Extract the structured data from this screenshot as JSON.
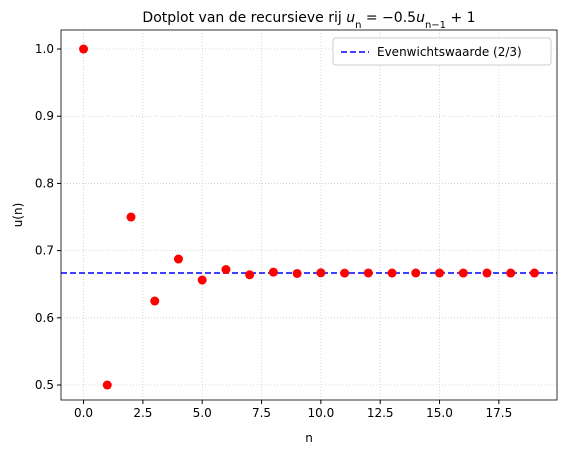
{
  "chart_data": {
    "type": "scatter",
    "title": [
      "Dotplot van de recursieve rij ",
      "u",
      "n",
      " = −0.5",
      "u",
      "n−1",
      " + 1"
    ],
    "x_label": "n",
    "y_label": "u(n)",
    "x": [
      0,
      1,
      2,
      3,
      4,
      5,
      6,
      7,
      8,
      9,
      10,
      11,
      12,
      13,
      14,
      15,
      16,
      17,
      18,
      19
    ],
    "values": [
      1,
      0.5,
      0.75,
      0.625,
      0.6875,
      0.65625,
      0.671875,
      0.6640625,
      0.66796875,
      0.666015625,
      0.6669921875,
      0.66650390625,
      0.666748046875,
      0.6666259765625,
      0.66668701171875,
      0.666656494140625,
      0.6666717529296875,
      0.6666641235351562,
      0.6666679382324219,
      0.666666030883789
    ],
    "color": "#ff0000",
    "hline": {
      "name": "Evenwichtswaarde (2/3)",
      "value": 0.6666666667,
      "color": "#0000ff"
    },
    "xlim": [
      -0.95,
      19.95
    ],
    "ylim": [
      0.4777,
      1.0283
    ],
    "xticks": [
      {
        "value": 0,
        "label": "0.0"
      },
      2.5,
      {
        "value": 5,
        "label": "5.0"
      },
      7.5,
      {
        "value": 10,
        "label": "10.0"
      },
      12.5,
      {
        "value": 15,
        "label": "15.0"
      },
      17.5
    ],
    "yticks": [
      0.5,
      0.6,
      0.7,
      0.8,
      0.9,
      {
        "value": 1,
        "label": "1.0"
      }
    ],
    "grid": true,
    "legend": "upper right"
  }
}
